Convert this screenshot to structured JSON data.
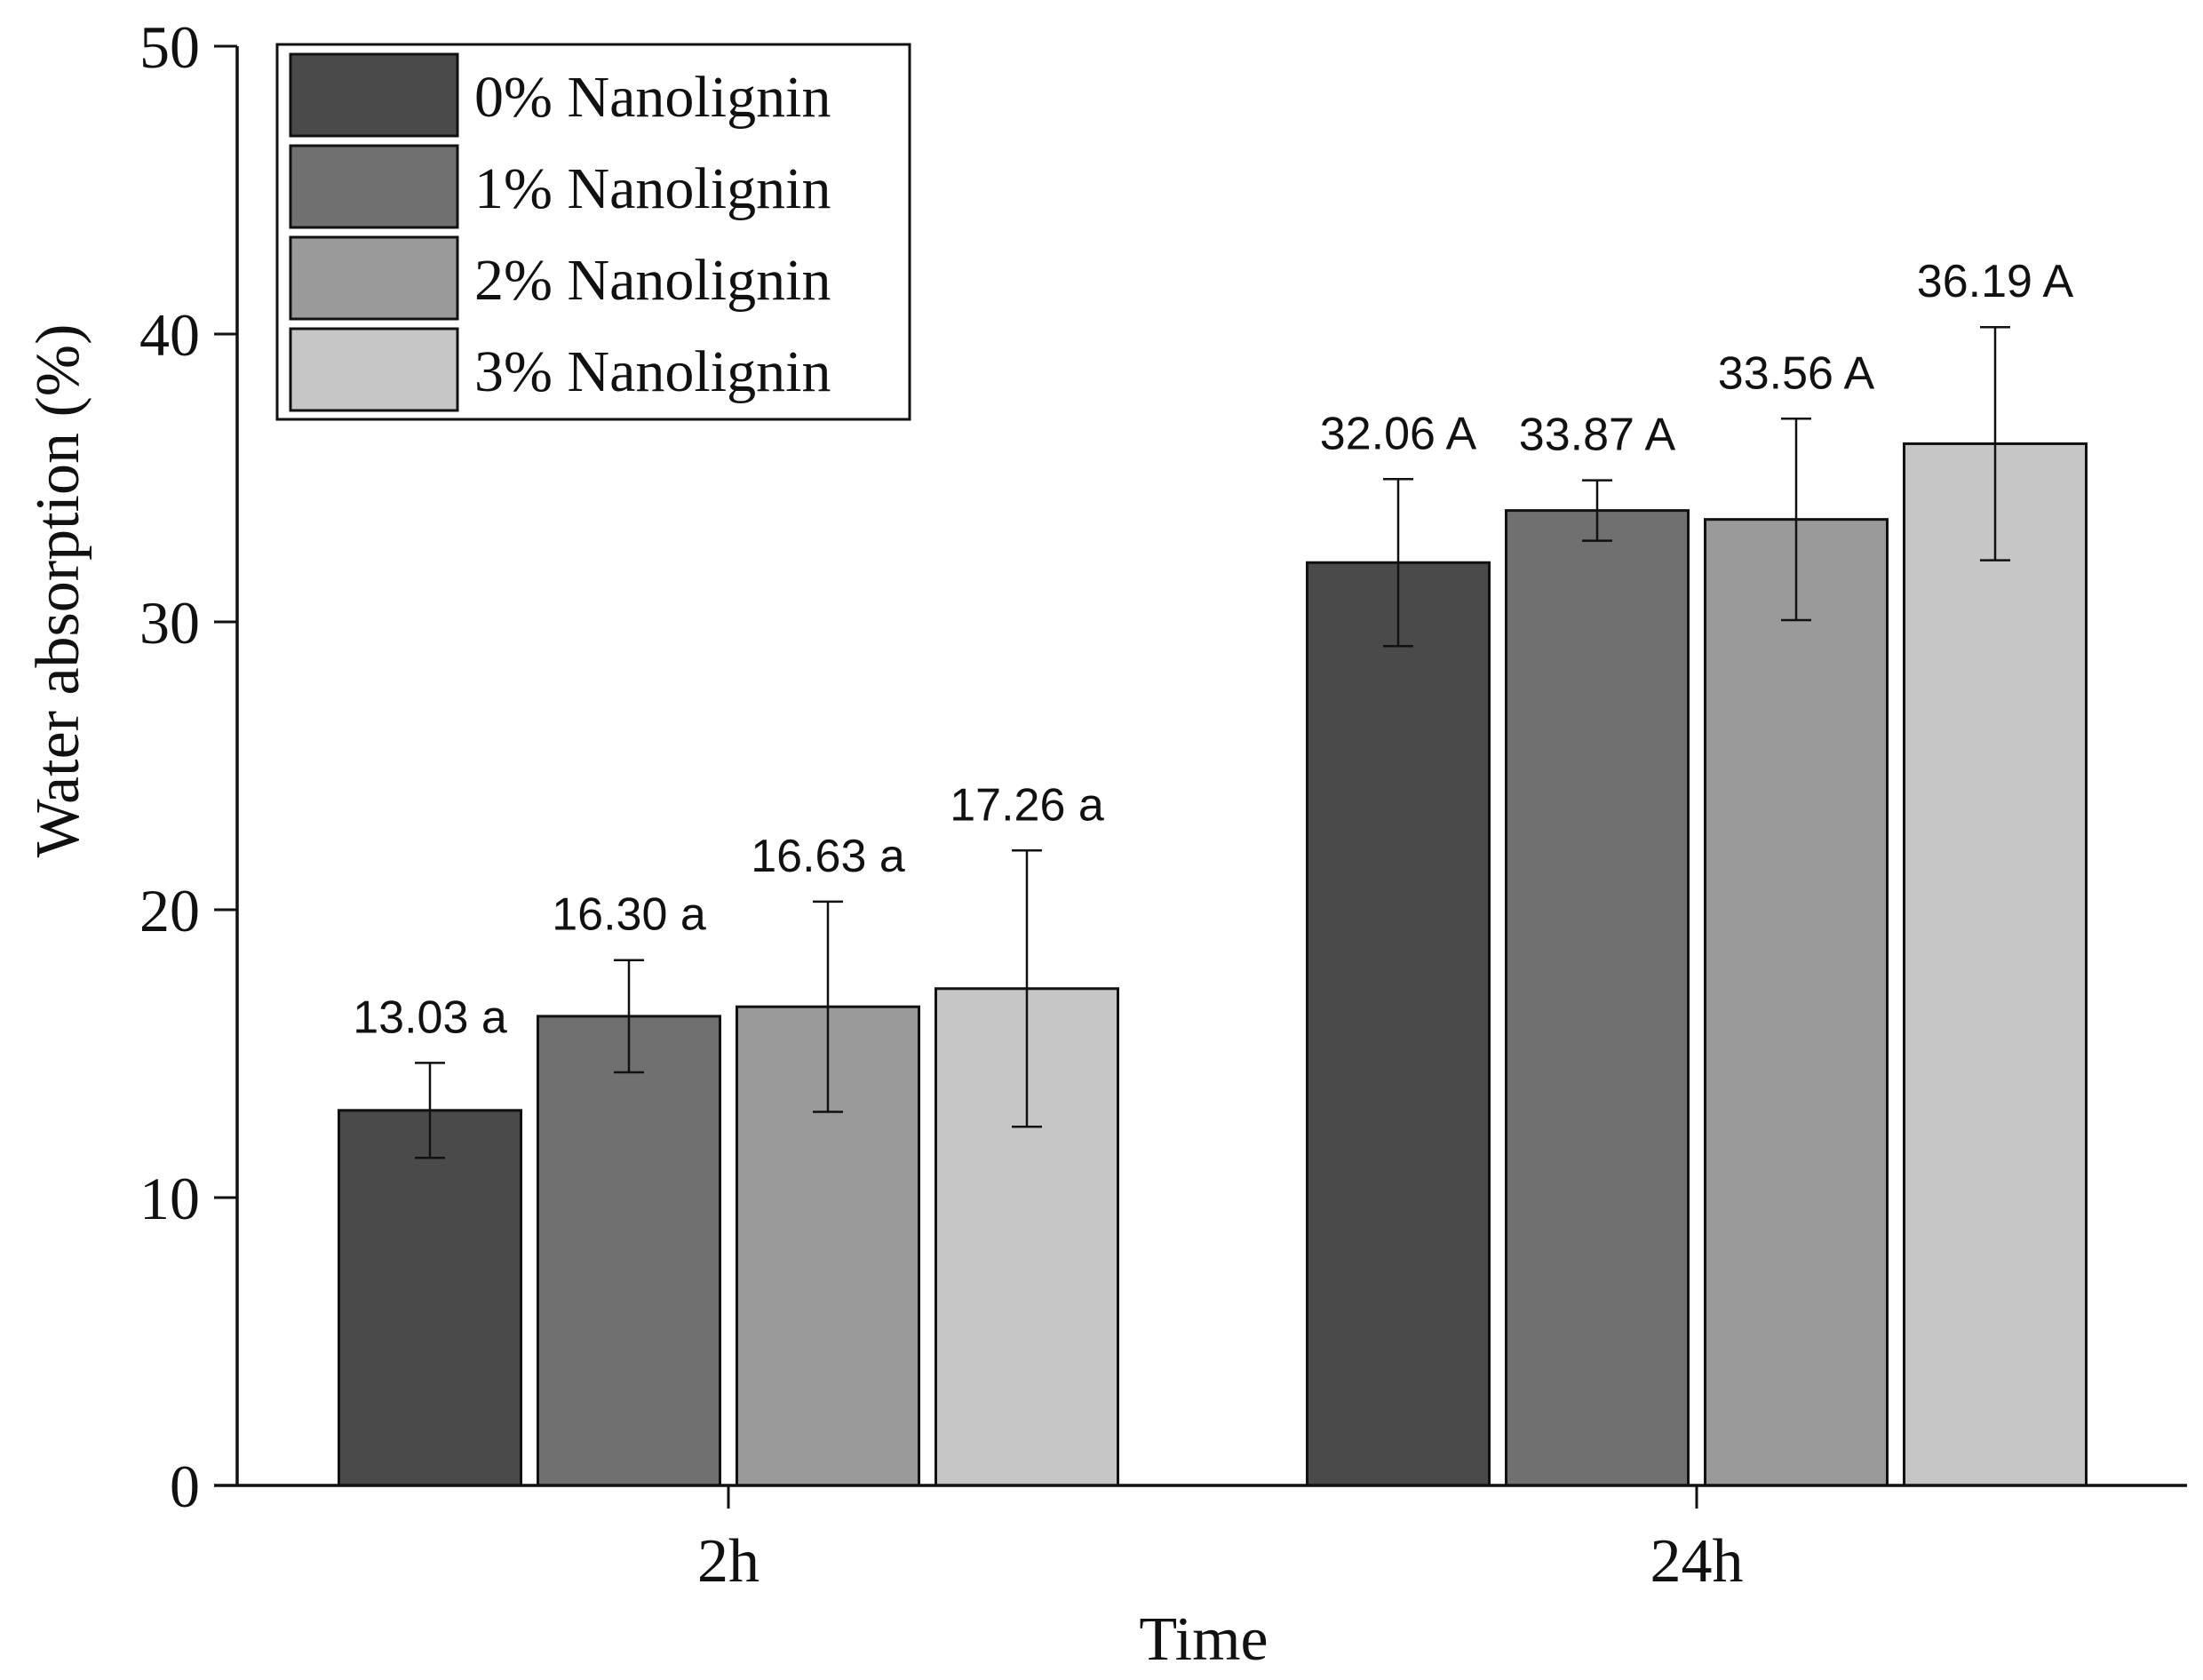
{
  "chart_data": {
    "type": "bar",
    "title": "",
    "xlabel": "Time",
    "ylabel": "Water absorption (%)",
    "ylim": [
      0,
      50
    ],
    "yticks": [
      0,
      10,
      20,
      30,
      40,
      50
    ],
    "ytick_labels": [
      "0",
      "10",
      "20",
      "30",
      "40",
      "50"
    ],
    "grid": false,
    "legend_position": "top-left",
    "categories": [
      "2h",
      "24h"
    ],
    "series": [
      {
        "name": "0% Nanolignin",
        "color": "#4a4a4a",
        "values": [
          13.03,
          32.06
        ],
        "errors": [
          1.65,
          2.9
        ],
        "labels": [
          "13.03 a",
          "32.06 A"
        ]
      },
      {
        "name": "1% Nanolignin",
        "color": "#707070",
        "values": [
          16.3,
          33.87
        ],
        "errors": [
          1.95,
          1.05
        ],
        "labels": [
          "16.30 a",
          "33.87 A"
        ]
      },
      {
        "name": "2% Nanolignin",
        "color": "#9a9a9a",
        "values": [
          16.63,
          33.56
        ],
        "errors": [
          3.65,
          3.5
        ],
        "labels": [
          "16.63 a",
          "33.56 A"
        ]
      },
      {
        "name": "3% Nanolignin",
        "color": "#c6c6c6",
        "values": [
          17.26,
          36.19
        ],
        "errors": [
          4.8,
          4.05
        ],
        "labels": [
          "17.26 a",
          "36.19 A"
        ]
      }
    ]
  }
}
